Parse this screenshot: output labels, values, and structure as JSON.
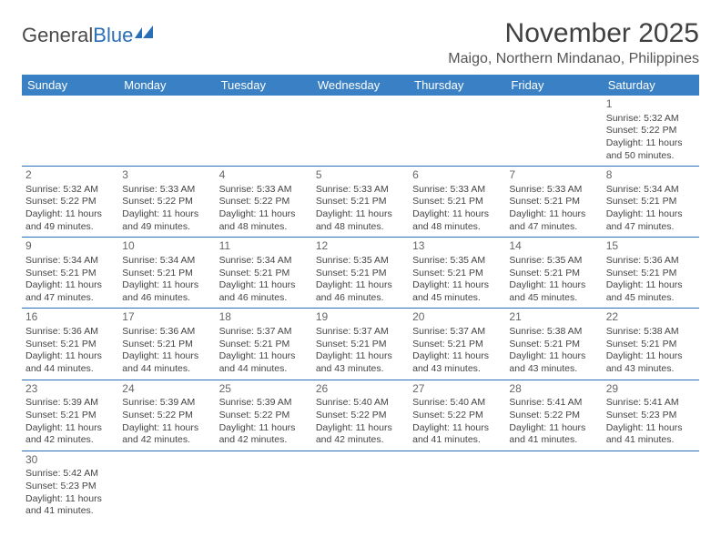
{
  "logo": {
    "text1": "General",
    "text2": "Blue"
  },
  "title": "November 2025",
  "location": "Maigo, Northern Mindanao, Philippines",
  "colors": {
    "header_bg": "#3a80c4",
    "header_text": "#ffffff",
    "border": "#2a6fb5",
    "body_text": "#444444",
    "daynum": "#666666"
  },
  "font": {
    "month_size": 30,
    "location_size": 16,
    "th_size": 13,
    "cell_size": 10.5
  },
  "weekdays": [
    "Sunday",
    "Monday",
    "Tuesday",
    "Wednesday",
    "Thursday",
    "Friday",
    "Saturday"
  ],
  "first_day_index": 6,
  "days": [
    {
      "n": 1,
      "sunrise": "5:32 AM",
      "sunset": "5:22 PM",
      "daylight": "11 hours and 50 minutes."
    },
    {
      "n": 2,
      "sunrise": "5:32 AM",
      "sunset": "5:22 PM",
      "daylight": "11 hours and 49 minutes."
    },
    {
      "n": 3,
      "sunrise": "5:33 AM",
      "sunset": "5:22 PM",
      "daylight": "11 hours and 49 minutes."
    },
    {
      "n": 4,
      "sunrise": "5:33 AM",
      "sunset": "5:22 PM",
      "daylight": "11 hours and 48 minutes."
    },
    {
      "n": 5,
      "sunrise": "5:33 AM",
      "sunset": "5:21 PM",
      "daylight": "11 hours and 48 minutes."
    },
    {
      "n": 6,
      "sunrise": "5:33 AM",
      "sunset": "5:21 PM",
      "daylight": "11 hours and 48 minutes."
    },
    {
      "n": 7,
      "sunrise": "5:33 AM",
      "sunset": "5:21 PM",
      "daylight": "11 hours and 47 minutes."
    },
    {
      "n": 8,
      "sunrise": "5:34 AM",
      "sunset": "5:21 PM",
      "daylight": "11 hours and 47 minutes."
    },
    {
      "n": 9,
      "sunrise": "5:34 AM",
      "sunset": "5:21 PM",
      "daylight": "11 hours and 47 minutes."
    },
    {
      "n": 10,
      "sunrise": "5:34 AM",
      "sunset": "5:21 PM",
      "daylight": "11 hours and 46 minutes."
    },
    {
      "n": 11,
      "sunrise": "5:34 AM",
      "sunset": "5:21 PM",
      "daylight": "11 hours and 46 minutes."
    },
    {
      "n": 12,
      "sunrise": "5:35 AM",
      "sunset": "5:21 PM",
      "daylight": "11 hours and 46 minutes."
    },
    {
      "n": 13,
      "sunrise": "5:35 AM",
      "sunset": "5:21 PM",
      "daylight": "11 hours and 45 minutes."
    },
    {
      "n": 14,
      "sunrise": "5:35 AM",
      "sunset": "5:21 PM",
      "daylight": "11 hours and 45 minutes."
    },
    {
      "n": 15,
      "sunrise": "5:36 AM",
      "sunset": "5:21 PM",
      "daylight": "11 hours and 45 minutes."
    },
    {
      "n": 16,
      "sunrise": "5:36 AM",
      "sunset": "5:21 PM",
      "daylight": "11 hours and 44 minutes."
    },
    {
      "n": 17,
      "sunrise": "5:36 AM",
      "sunset": "5:21 PM",
      "daylight": "11 hours and 44 minutes."
    },
    {
      "n": 18,
      "sunrise": "5:37 AM",
      "sunset": "5:21 PM",
      "daylight": "11 hours and 44 minutes."
    },
    {
      "n": 19,
      "sunrise": "5:37 AM",
      "sunset": "5:21 PM",
      "daylight": "11 hours and 43 minutes."
    },
    {
      "n": 20,
      "sunrise": "5:37 AM",
      "sunset": "5:21 PM",
      "daylight": "11 hours and 43 minutes."
    },
    {
      "n": 21,
      "sunrise": "5:38 AM",
      "sunset": "5:21 PM",
      "daylight": "11 hours and 43 minutes."
    },
    {
      "n": 22,
      "sunrise": "5:38 AM",
      "sunset": "5:21 PM",
      "daylight": "11 hours and 43 minutes."
    },
    {
      "n": 23,
      "sunrise": "5:39 AM",
      "sunset": "5:21 PM",
      "daylight": "11 hours and 42 minutes."
    },
    {
      "n": 24,
      "sunrise": "5:39 AM",
      "sunset": "5:22 PM",
      "daylight": "11 hours and 42 minutes."
    },
    {
      "n": 25,
      "sunrise": "5:39 AM",
      "sunset": "5:22 PM",
      "daylight": "11 hours and 42 minutes."
    },
    {
      "n": 26,
      "sunrise": "5:40 AM",
      "sunset": "5:22 PM",
      "daylight": "11 hours and 42 minutes."
    },
    {
      "n": 27,
      "sunrise": "5:40 AM",
      "sunset": "5:22 PM",
      "daylight": "11 hours and 41 minutes."
    },
    {
      "n": 28,
      "sunrise": "5:41 AM",
      "sunset": "5:22 PM",
      "daylight": "11 hours and 41 minutes."
    },
    {
      "n": 29,
      "sunrise": "5:41 AM",
      "sunset": "5:23 PM",
      "daylight": "11 hours and 41 minutes."
    },
    {
      "n": 30,
      "sunrise": "5:42 AM",
      "sunset": "5:23 PM",
      "daylight": "11 hours and 41 minutes."
    }
  ],
  "labels": {
    "sunrise": "Sunrise:",
    "sunset": "Sunset:",
    "daylight": "Daylight:"
  }
}
